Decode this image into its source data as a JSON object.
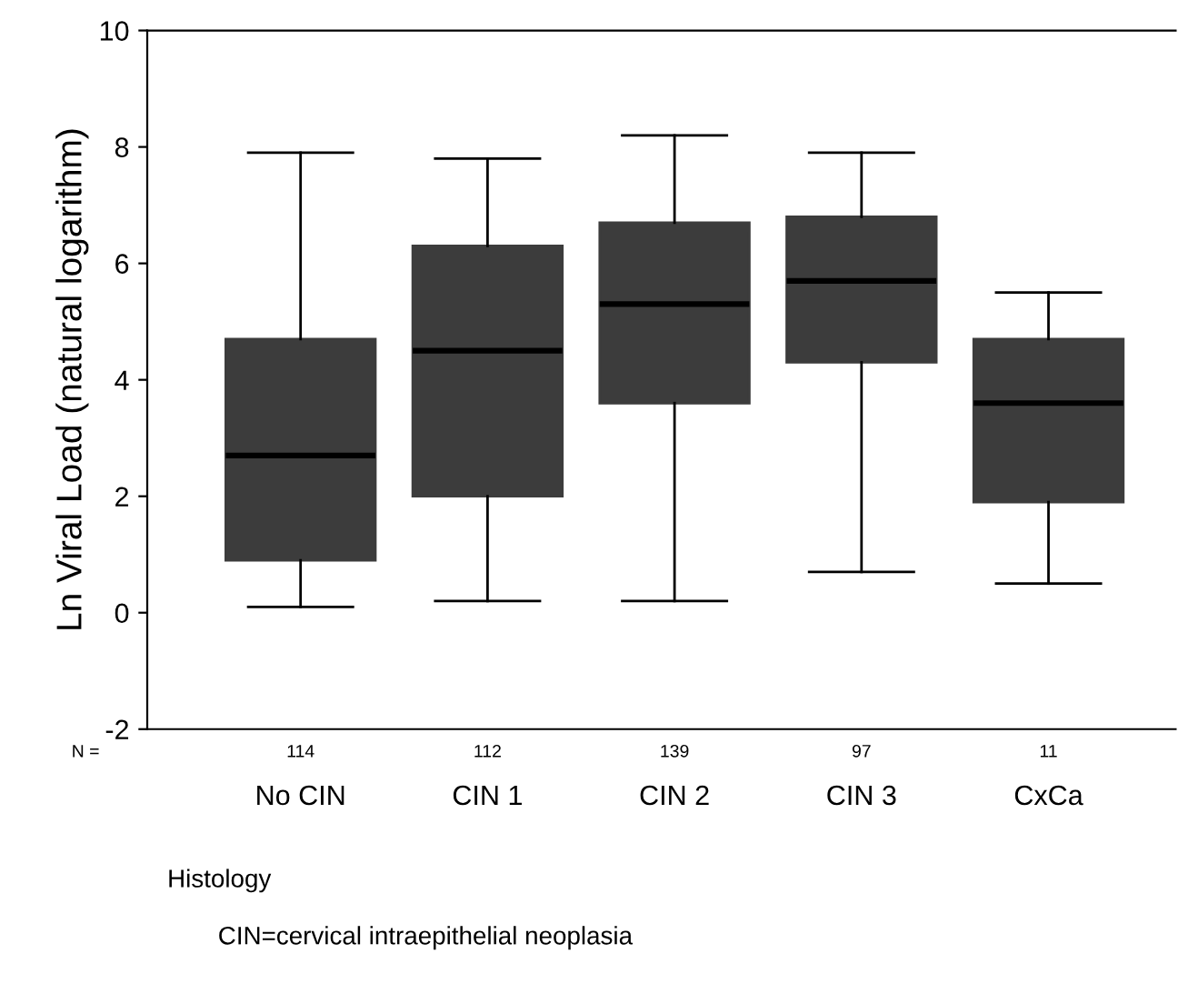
{
  "chart_data": {
    "type": "box",
    "xlabel": "Histology",
    "ylabel": "Ln Viral Load (natural logarithm)",
    "categories": [
      "No CIN",
      "CIN 1",
      "CIN 2",
      "CIN 3",
      "CxCa"
    ],
    "color": "#3c3c3c",
    "boxes": [
      {
        "low": 0.1,
        "q1": 0.9,
        "median": 2.7,
        "q3": 4.7,
        "high": 7.9
      },
      {
        "low": 0.2,
        "q1": 2.0,
        "median": 4.5,
        "q3": 6.3,
        "high": 7.8
      },
      {
        "low": 0.2,
        "q1": 3.6,
        "median": 5.3,
        "q3": 6.7,
        "high": 8.2
      },
      {
        "low": 0.7,
        "q1": 4.3,
        "median": 5.7,
        "q3": 6.8,
        "high": 7.9
      },
      {
        "low": 0.5,
        "q1": 1.9,
        "median": 3.6,
        "q3": 4.7,
        "high": 5.5
      }
    ],
    "ylim": [
      -2,
      10
    ],
    "yticks": [
      -2,
      0,
      2,
      4,
      6,
      8,
      10
    ],
    "grid": false,
    "legend": false,
    "annotations": [
      "N =",
      "114",
      "112",
      "139",
      "97",
      "11",
      "CIN=cervical intraepithelial neoplasia"
    ]
  }
}
